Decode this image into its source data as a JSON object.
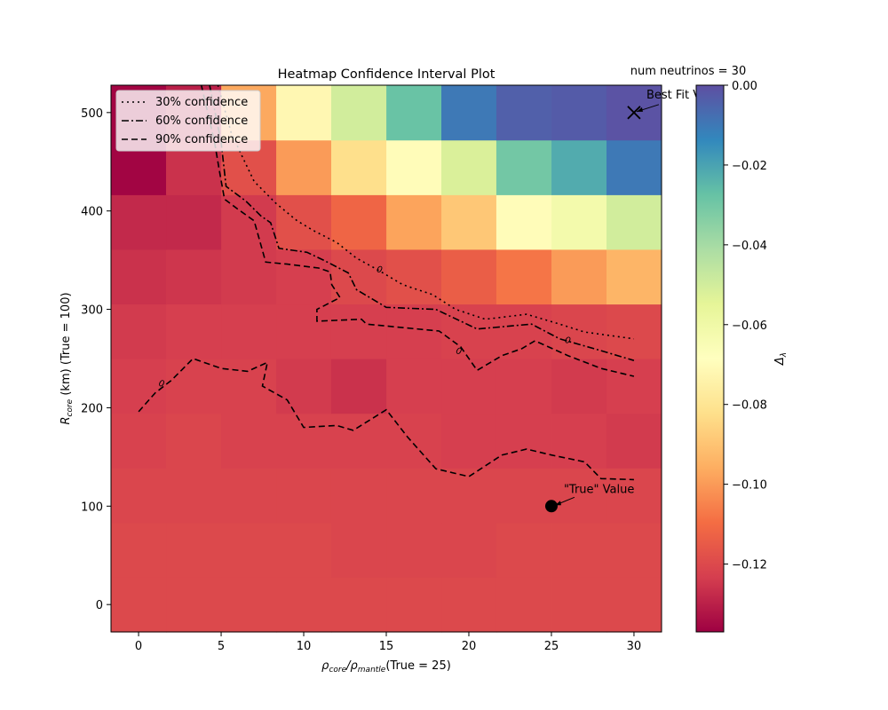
{
  "chart_data": {
    "type": "heatmap",
    "title": "Heatmap Confidence Interval Plot",
    "top_note": "num neutrinos = 30",
    "xlabel_parts": {
      "a": "ρ",
      "a_sub": "core",
      "mid": "/ρ",
      "b_sub": "mantle",
      "tail": "(True = 25)"
    },
    "ylabel_parts": {
      "a": "R",
      "a_sub": "core",
      "tail": " (km) (True = 100)"
    },
    "colorbar_label_parts": {
      "a": "Δ",
      "a_sub": "λ"
    },
    "x_centers": [
      0,
      3.33,
      6.67,
      10,
      13.33,
      16.67,
      20,
      23.33,
      26.67,
      30
    ],
    "y_centers": [
      0,
      55.6,
      111.1,
      166.7,
      222.2,
      277.8,
      333.3,
      388.9,
      444.4,
      500
    ],
    "xlim": [
      -1.67,
      31.67
    ],
    "ylim": [
      -27.8,
      527.8
    ],
    "xticks": [
      0,
      5,
      10,
      15,
      20,
      25,
      30
    ],
    "yticks": [
      0,
      100,
      200,
      300,
      400,
      500
    ],
    "z": [
      [
        -0.12,
        -0.12,
        -0.12,
        -0.12,
        -0.12,
        -0.12,
        -0.12,
        -0.12,
        -0.12,
        -0.12
      ],
      [
        -0.12,
        -0.12,
        -0.12,
        -0.12,
        -0.121,
        -0.121,
        -0.121,
        -0.12,
        -0.12,
        -0.12
      ],
      [
        -0.121,
        -0.121,
        -0.121,
        -0.121,
        -0.121,
        -0.121,
        -0.121,
        -0.121,
        -0.121,
        -0.121
      ],
      [
        -0.122,
        -0.121,
        -0.122,
        -0.122,
        -0.122,
        -0.122,
        -0.123,
        -0.123,
        -0.123,
        -0.124
      ],
      [
        -0.123,
        -0.122,
        -0.122,
        -0.124,
        -0.126,
        -0.123,
        -0.123,
        -0.123,
        -0.124,
        -0.123
      ],
      [
        -0.124,
        -0.123,
        -0.123,
        -0.123,
        -0.123,
        -0.123,
        -0.122,
        -0.122,
        -0.121,
        -0.12
      ],
      [
        -0.126,
        -0.125,
        -0.124,
        -0.123,
        -0.12,
        -0.118,
        -0.114,
        -0.108,
        -0.1,
        -0.094
      ],
      [
        -0.128,
        -0.128,
        -0.124,
        -0.118,
        -0.112,
        -0.098,
        -0.089,
        -0.07,
        -0.062,
        -0.05
      ],
      [
        -0.136,
        -0.126,
        -0.118,
        -0.1,
        -0.082,
        -0.07,
        -0.052,
        -0.03,
        -0.022,
        -0.01
      ],
      [
        -0.136,
        -0.13,
        -0.097,
        -0.072,
        -0.05,
        -0.028,
        -0.01,
        -0.004,
        -0.003,
        -0.001
      ]
    ],
    "colorscale": "Spectral",
    "zlim": [
      -0.137,
      0.0
    ],
    "colorbar_ticks": [
      "0.00",
      "−0.02",
      "−0.04",
      "−0.06",
      "−0.08",
      "−0.10",
      "−0.12"
    ],
    "colorbar_tick_values": [
      0.0,
      -0.02,
      -0.04,
      -0.06,
      -0.08,
      -0.1,
      -0.12
    ],
    "contours": [
      {
        "name": "30% confidence",
        "dash": "2,4",
        "points": [
          [
            4.8,
            528
          ],
          [
            5.6,
            480
          ],
          [
            6.2,
            458
          ],
          [
            7.0,
            430
          ],
          [
            8.3,
            408
          ],
          [
            9.6,
            390
          ],
          [
            10.6,
            380
          ],
          [
            12.0,
            368
          ],
          [
            13.2,
            352
          ],
          [
            14.5,
            340
          ],
          [
            16.0,
            325
          ],
          [
            17.8,
            315
          ],
          [
            19.2,
            300
          ],
          [
            21.0,
            290
          ],
          [
            23.5,
            295
          ],
          [
            25.5,
            285
          ],
          [
            27.0,
            277
          ],
          [
            30.0,
            270
          ]
        ],
        "label_at": [
          14.5,
          338
        ]
      },
      {
        "name": "60% confidence",
        "dash": "8,3,2,3",
        "points": [
          [
            4.3,
            528
          ],
          [
            5.0,
            470
          ],
          [
            5.3,
            425
          ],
          [
            6.5,
            410
          ],
          [
            7.4,
            395
          ],
          [
            8.0,
            388
          ],
          [
            8.5,
            362
          ],
          [
            10.2,
            358
          ],
          [
            11.2,
            350
          ],
          [
            12.7,
            337
          ],
          [
            13.2,
            320
          ],
          [
            15.0,
            302
          ],
          [
            18.0,
            300
          ],
          [
            20.5,
            280
          ],
          [
            23.8,
            285
          ],
          [
            25.5,
            270
          ],
          [
            28.0,
            258
          ],
          [
            30.0,
            248
          ]
        ],
        "label_at": [
          19.3,
          255
        ]
      },
      {
        "name": "90% confidence",
        "dash": "7,4",
        "points": [
          [
            3.8,
            528
          ],
          [
            4.6,
            470
          ],
          [
            4.9,
            440
          ],
          [
            5.2,
            412
          ],
          [
            6.0,
            402
          ],
          [
            7.0,
            390
          ],
          [
            7.7,
            348
          ],
          [
            9.0,
            346
          ],
          [
            10.9,
            342
          ],
          [
            11.6,
            338
          ],
          [
            11.7,
            325
          ],
          [
            12.2,
            312
          ],
          [
            10.8,
            300
          ],
          [
            10.8,
            288
          ],
          [
            13.5,
            290
          ],
          [
            13.8,
            285
          ],
          [
            18.2,
            278
          ],
          [
            19.5,
            262
          ],
          [
            20.5,
            238
          ],
          [
            22.0,
            253
          ],
          [
            23.2,
            260
          ],
          [
            24.0,
            268
          ],
          [
            26.0,
            253
          ],
          [
            28.0,
            240
          ],
          [
            30.0,
            232
          ]
        ],
        "label_at": [
          25.9,
          266
        ]
      },
      {
        "name": "90% confidence (lower branch)",
        "dash": "7,4",
        "points": [
          [
            0,
            196
          ],
          [
            1.0,
            215
          ],
          [
            2.0,
            228
          ],
          [
            3.3,
            250
          ],
          [
            5.0,
            240
          ],
          [
            6.6,
            237
          ],
          [
            7.8,
            246
          ],
          [
            7.5,
            222
          ],
          [
            9.0,
            208
          ],
          [
            10.0,
            180
          ],
          [
            12.0,
            182
          ],
          [
            13.0,
            177
          ],
          [
            15.0,
            198
          ],
          [
            16.3,
            170
          ],
          [
            18.0,
            138
          ],
          [
            20.0,
            130
          ],
          [
            22.0,
            152
          ],
          [
            23.5,
            158
          ],
          [
            25.0,
            152
          ],
          [
            27.0,
            145
          ],
          [
            28.0,
            128
          ],
          [
            30.0,
            127
          ]
        ],
        "label_at": [
          1.3,
          222
        ]
      }
    ],
    "contour_label": "0",
    "legend": [
      "30% confidence",
      "60% confidence",
      "90% confidence"
    ],
    "legend_loc": "upper left",
    "annotations": [
      {
        "text": "Best Fit Value",
        "marker": "x",
        "x": 30,
        "y": 500
      },
      {
        "text": "\"True\" Value",
        "marker": "o",
        "x": 25,
        "y": 100
      }
    ]
  }
}
